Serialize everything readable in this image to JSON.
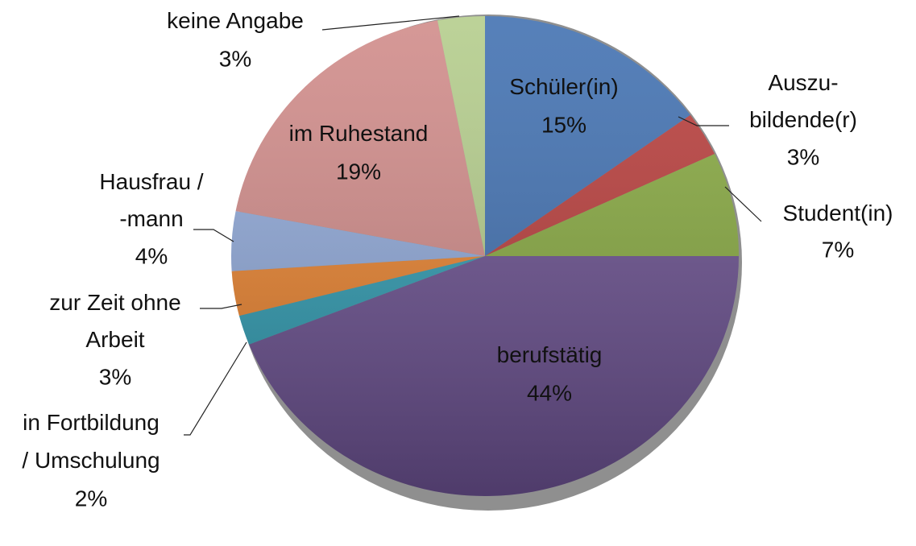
{
  "chart_data": {
    "type": "pie",
    "categories": [
      "Schüler(in)",
      "Auszu-\nbildende(r)",
      "Student(in)",
      "berufstätig",
      "in Fortbildung\n/ Umschulung",
      "zur Zeit ohne\nArbeit",
      "Hausfrau /\n-mann",
      "im Ruhestand",
      "keine Angabe"
    ],
    "values": [
      15,
      3,
      7,
      44,
      2,
      3,
      4,
      19,
      3
    ],
    "value_labels": [
      "15%",
      "3%",
      "7%",
      "44%",
      "2%",
      "3%",
      "4%",
      "19%",
      "3%"
    ],
    "colors": [
      "#3f6fb0",
      "#b83c3a",
      "#86a83f",
      "#694f8e",
      "#2f9ab0",
      "#e8822e",
      "#8fa8d8",
      "#d08a88",
      "#b3cc8a"
    ]
  }
}
